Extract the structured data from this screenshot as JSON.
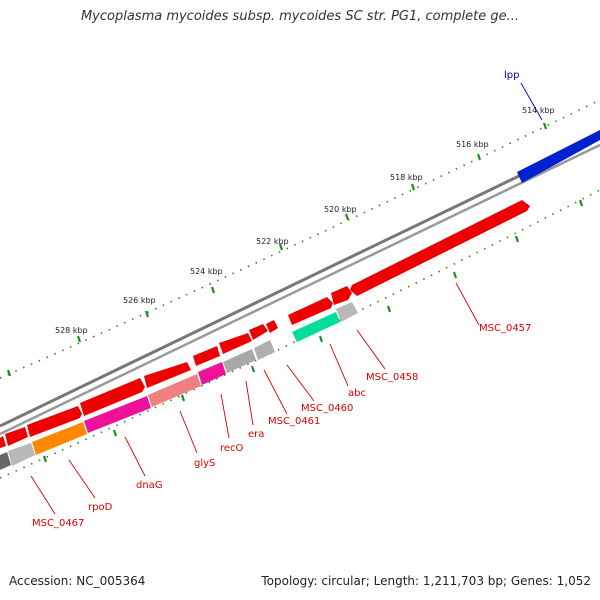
{
  "title": "Mycoplasma mycoides subsp. mycoides SC str. PG1, complete ge...",
  "accession_text": "Accession: NC_005364",
  "topology_text": "Topology: circular; Length: 1,211,703 bp; Genes: 1,052",
  "colors": {
    "red_gene": "#ee0000",
    "blue_gene": "#0000dd",
    "backbone": "#7a7a7a",
    "tick": "#228b22",
    "magenta": "#ee1199",
    "orange": "#ff8800",
    "salmon": "#f08080",
    "teal": "#00d08a",
    "gray_band": "#b8b8b8"
  },
  "scale": {
    "tick_labels": [
      "514 kbp",
      "516 kbp",
      "518 kbp",
      "520 kbp",
      "522 kbp",
      "524 kbp",
      "526 kbp",
      "528 kbp"
    ]
  },
  "gene_labels": {
    "lpp": "lpp",
    "msc0457": "MSC_0457",
    "msc0458": "MSC_0458",
    "abc": "abc",
    "msc0460": "MSC_0460",
    "msc0461": "MSC_0461",
    "era": "era",
    "reco": "recO",
    "glys": "glyS",
    "dnag": "dnaG",
    "rpod": "rpoD",
    "msc0467": "MSC_0467"
  }
}
